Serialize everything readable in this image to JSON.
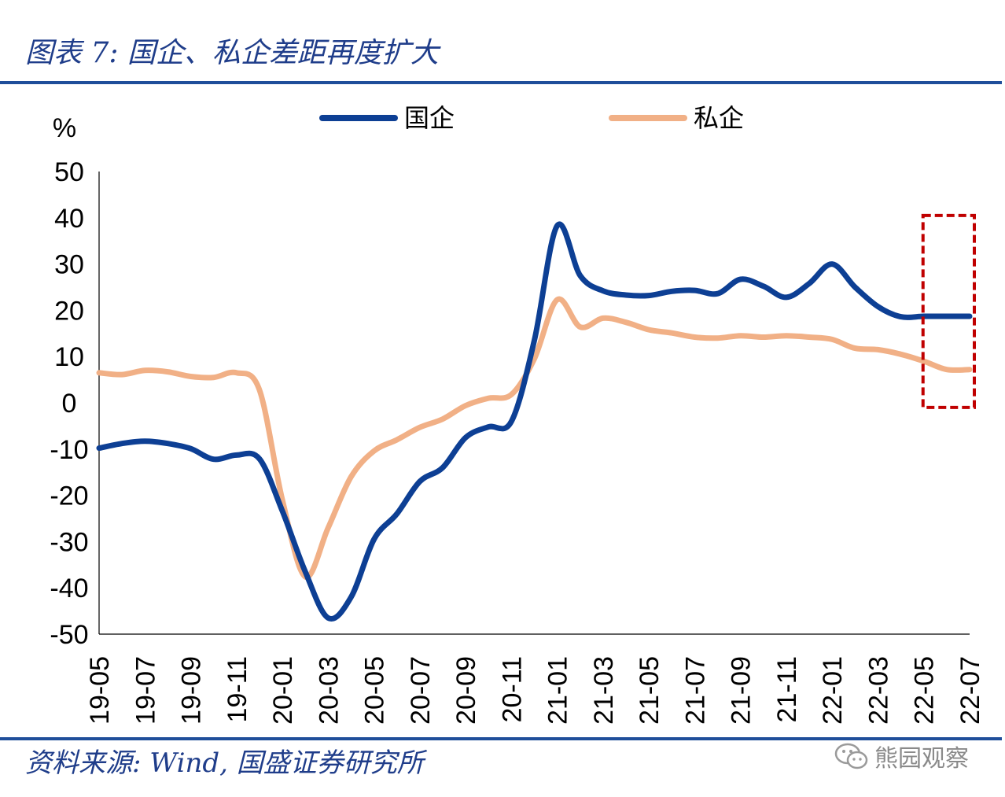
{
  "header": {
    "title": "图表 7:  国企、私企差距再度扩大"
  },
  "footer": {
    "source": "资料来源:  Wind,  国盛证券研究所",
    "watermark": "熊园观察"
  },
  "colors": {
    "soe": "#0d3f94",
    "private": "#f1b086",
    "rule": "#1f4e9a",
    "highlight": "#c00000"
  },
  "chart_data": {
    "type": "line",
    "ylabel": "%",
    "ylim": [
      -50,
      50
    ],
    "yticks": [
      50,
      40,
      30,
      20,
      10,
      0,
      -10,
      -20,
      -30,
      -40,
      -50
    ],
    "xticks": [
      "19-05",
      "19-07",
      "19-09",
      "19-11",
      "20-01",
      "20-03",
      "20-05",
      "20-07",
      "20-09",
      "20-11",
      "21-01",
      "21-03",
      "21-05",
      "21-07",
      "21-09",
      "21-11",
      "22-01",
      "22-03",
      "22-05",
      "22-07"
    ],
    "categories": [
      "19-05",
      "19-06",
      "19-07",
      "19-08",
      "19-09",
      "19-10",
      "19-11",
      "19-12",
      "20-01",
      "20-02",
      "20-03",
      "20-04",
      "20-05",
      "20-06",
      "20-07",
      "20-08",
      "20-09",
      "20-10",
      "20-11",
      "20-12",
      "21-01",
      "21-02",
      "21-03",
      "21-04",
      "21-05",
      "21-06",
      "21-07",
      "21-08",
      "21-09",
      "21-10",
      "21-11",
      "21-12",
      "22-01",
      "22-02",
      "22-03",
      "22-04",
      "22-05",
      "22-06",
      "22-07"
    ],
    "series": [
      {
        "name": "国企",
        "values": [
          -9.8,
          -8.8,
          -8.3,
          -8.8,
          -9.9,
          -12.2,
          -11.3,
          -12.1,
          -23.4,
          -36.5,
          -46.5,
          -42,
          -29.5,
          -24,
          -17,
          -14,
          -7.5,
          -5.2,
          -4,
          13.5,
          38.3,
          27.5,
          24.2,
          23.3,
          23.2,
          24.1,
          24.3,
          23.6,
          26.7,
          25.2,
          22.8,
          25.8,
          30,
          25,
          20.8,
          18.6,
          18.7,
          18.7,
          18.7
        ]
      },
      {
        "name": "私企",
        "values": [
          6.5,
          6.1,
          7,
          6.7,
          5.7,
          5.5,
          6.5,
          2.8,
          -21,
          -37.6,
          -27,
          -16,
          -10.4,
          -8,
          -5.3,
          -3.5,
          -0.6,
          1,
          1.8,
          9.5,
          22.3,
          16.4,
          18.3,
          17.4,
          15.8,
          15.1,
          14.2,
          14,
          14.5,
          14.2,
          14.5,
          14.2,
          13.7,
          11.8,
          11.5,
          10.5,
          9,
          7.2,
          7.2
        ]
      }
    ],
    "legend_position": "top",
    "highlight_box": {
      "x_start": "22-05",
      "x_end": "22-07",
      "y_from": -1,
      "y_to": 40.5
    }
  }
}
